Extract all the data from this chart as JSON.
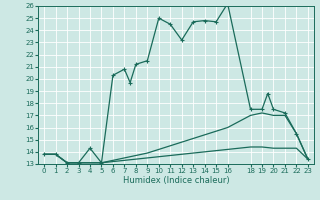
{
  "background_color": "#cde8e4",
  "grid_color": "#b8d8d4",
  "line_color": "#1a6b5a",
  "xlabel": "Humidex (Indice chaleur)",
  "xlim": [
    -0.5,
    23.5
  ],
  "ylim": [
    13,
    26
  ],
  "xticks": [
    0,
    1,
    2,
    3,
    4,
    5,
    6,
    7,
    8,
    9,
    10,
    11,
    12,
    13,
    14,
    15,
    16,
    18,
    19,
    20,
    21,
    22,
    23
  ],
  "yticks": [
    13,
    14,
    15,
    16,
    17,
    18,
    19,
    20,
    21,
    22,
    23,
    24,
    25,
    26
  ],
  "line1_x": [
    0,
    1,
    2,
    3,
    4,
    5,
    6,
    7,
    8,
    9,
    10,
    11,
    12,
    13,
    14,
    15,
    16,
    18,
    19,
    20,
    21,
    22,
    23
  ],
  "line1_y": [
    13.8,
    13.8,
    13.1,
    13.1,
    13.1,
    13.1,
    13.2,
    13.3,
    13.4,
    13.5,
    13.6,
    13.7,
    13.8,
    13.9,
    14.0,
    14.1,
    14.2,
    14.4,
    14.4,
    14.3,
    14.3,
    14.3,
    13.4
  ],
  "line2_x": [
    0,
    1,
    2,
    3,
    4,
    5,
    6,
    7,
    8,
    9,
    10,
    11,
    12,
    13,
    14,
    15,
    16,
    18,
    19,
    20,
    21,
    22,
    23
  ],
  "line2_y": [
    13.8,
    13.8,
    13.1,
    13.1,
    13.1,
    13.1,
    13.3,
    13.5,
    13.7,
    13.9,
    14.2,
    14.5,
    14.8,
    15.1,
    15.4,
    15.7,
    16.0,
    17.0,
    17.2,
    17.0,
    17.0,
    15.5,
    13.4
  ],
  "line3_x": [
    0,
    1,
    2,
    3,
    4,
    5,
    6,
    7,
    7.5,
    8,
    9,
    10,
    11,
    12,
    13,
    14,
    15,
    16,
    18,
    19,
    19.5,
    20,
    21,
    22,
    23
  ],
  "line3_y": [
    13.8,
    13.8,
    13.1,
    13.1,
    14.3,
    13.1,
    20.3,
    20.8,
    19.7,
    21.2,
    21.5,
    25.0,
    24.5,
    23.2,
    24.7,
    24.8,
    24.7,
    26.2,
    17.5,
    17.5,
    18.8,
    17.5,
    17.2,
    15.5,
    13.4
  ]
}
